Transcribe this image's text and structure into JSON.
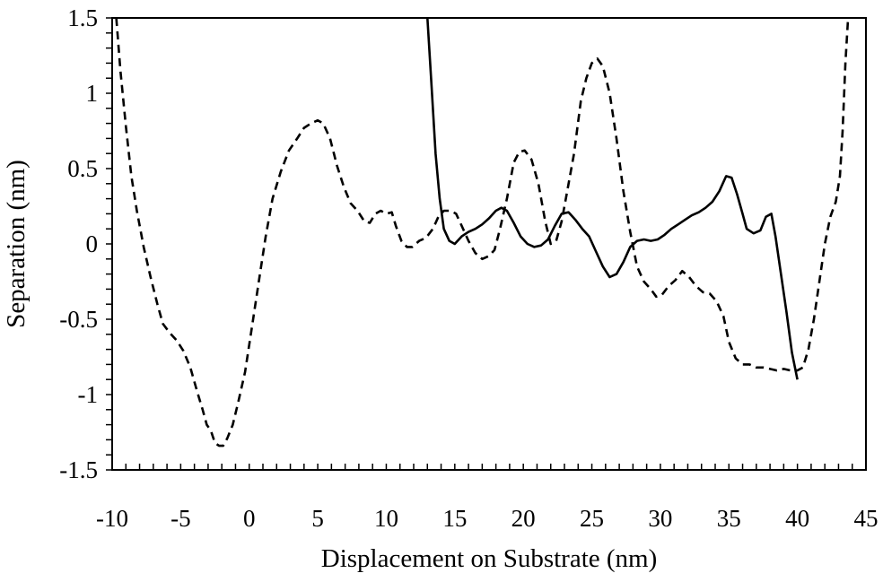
{
  "chart_data": {
    "type": "line",
    "title": "",
    "xlabel": "Displacement on Substrate (nm)",
    "ylabel": "Separation (nm)",
    "xlim": [
      -10,
      45
    ],
    "ylim": [
      -1.5,
      1.5
    ],
    "x_ticks": [
      -10,
      -5,
      0,
      5,
      10,
      15,
      20,
      25,
      30,
      35,
      40,
      45
    ],
    "x_tick_labels": [
      "-10",
      "-5",
      "0",
      "5",
      "10",
      "15",
      "20",
      "25",
      "30",
      "35",
      "40",
      "45"
    ],
    "y_ticks": [
      1.5,
      1,
      0.5,
      0,
      -0.5,
      -1,
      -1.5
    ],
    "y_tick_labels": [
      "1.5",
      "1",
      "0.5",
      "0",
      "-0.5",
      "-1",
      "-1.5"
    ],
    "x_minor_step": 1,
    "y_minor_step": 0.1,
    "grid": false,
    "legend": "none",
    "series": [
      {
        "style": "dashed",
        "color": "#000000",
        "points": [
          [
            -9.7,
            1.5
          ],
          [
            -9.4,
            1.15
          ],
          [
            -9.0,
            0.78
          ],
          [
            -8.6,
            0.45
          ],
          [
            -8.2,
            0.22
          ],
          [
            -7.7,
            -0.02
          ],
          [
            -7.2,
            -0.22
          ],
          [
            -6.7,
            -0.4
          ],
          [
            -6.3,
            -0.53
          ],
          [
            -5.8,
            -0.59
          ],
          [
            -5.3,
            -0.64
          ],
          [
            -4.8,
            -0.71
          ],
          [
            -4.3,
            -0.82
          ],
          [
            -3.8,
            -0.98
          ],
          [
            -3.4,
            -1.1
          ],
          [
            -3.1,
            -1.2
          ],
          [
            -2.8,
            -1.24
          ],
          [
            -2.5,
            -1.32
          ],
          [
            -2.2,
            -1.34
          ],
          [
            -1.9,
            -1.34
          ],
          [
            -1.6,
            -1.29
          ],
          [
            -1.2,
            -1.2
          ],
          [
            -0.8,
            -1.05
          ],
          [
            -0.3,
            -0.85
          ],
          [
            0.2,
            -0.55
          ],
          [
            0.7,
            -0.25
          ],
          [
            1.2,
            0.05
          ],
          [
            1.7,
            0.3
          ],
          [
            2.3,
            0.48
          ],
          [
            2.9,
            0.62
          ],
          [
            3.5,
            0.7
          ],
          [
            4.0,
            0.77
          ],
          [
            4.5,
            0.8
          ],
          [
            5.0,
            0.82
          ],
          [
            5.4,
            0.8
          ],
          [
            5.9,
            0.7
          ],
          [
            6.4,
            0.52
          ],
          [
            6.9,
            0.38
          ],
          [
            7.4,
            0.27
          ],
          [
            7.9,
            0.22
          ],
          [
            8.4,
            0.15
          ],
          [
            8.8,
            0.14
          ],
          [
            9.2,
            0.2
          ],
          [
            9.6,
            0.22
          ],
          [
            10.0,
            0.2
          ],
          [
            10.4,
            0.21
          ],
          [
            10.7,
            0.12
          ],
          [
            11.1,
            0.02
          ],
          [
            11.5,
            -0.02
          ],
          [
            11.9,
            -0.02
          ],
          [
            12.4,
            0.02
          ],
          [
            12.9,
            0.04
          ],
          [
            13.4,
            0.1
          ],
          [
            13.8,
            0.18
          ],
          [
            14.2,
            0.22
          ],
          [
            14.7,
            0.22
          ],
          [
            15.1,
            0.2
          ],
          [
            15.5,
            0.12
          ],
          [
            16.0,
            0.02
          ],
          [
            16.5,
            -0.06
          ],
          [
            17.0,
            -0.1
          ],
          [
            17.5,
            -0.08
          ],
          [
            17.9,
            -0.04
          ],
          [
            18.3,
            0.1
          ],
          [
            18.8,
            0.3
          ],
          [
            19.3,
            0.54
          ],
          [
            19.7,
            0.61
          ],
          [
            20.1,
            0.62
          ],
          [
            20.6,
            0.56
          ],
          [
            21.1,
            0.4
          ],
          [
            21.6,
            0.15
          ],
          [
            22.0,
            0.0
          ],
          [
            22.4,
            0.02
          ],
          [
            22.8,
            0.15
          ],
          [
            23.2,
            0.35
          ],
          [
            23.7,
            0.6
          ],
          [
            24.2,
            0.95
          ],
          [
            24.6,
            1.1
          ],
          [
            25.0,
            1.2
          ],
          [
            25.4,
            1.23
          ],
          [
            25.8,
            1.18
          ],
          [
            26.3,
            1.0
          ],
          [
            26.8,
            0.7
          ],
          [
            27.3,
            0.35
          ],
          [
            27.8,
            0.08
          ],
          [
            28.3,
            -0.15
          ],
          [
            28.8,
            -0.25
          ],
          [
            29.3,
            -0.3
          ],
          [
            29.7,
            -0.35
          ],
          [
            30.1,
            -0.34
          ],
          [
            30.6,
            -0.28
          ],
          [
            31.1,
            -0.24
          ],
          [
            31.6,
            -0.18
          ],
          [
            32.1,
            -0.22
          ],
          [
            32.6,
            -0.28
          ],
          [
            33.1,
            -0.32
          ],
          [
            33.6,
            -0.33
          ],
          [
            34.1,
            -0.38
          ],
          [
            34.6,
            -0.48
          ],
          [
            35.0,
            -0.65
          ],
          [
            35.5,
            -0.76
          ],
          [
            36.0,
            -0.8
          ],
          [
            36.5,
            -0.8
          ],
          [
            37.0,
            -0.82
          ],
          [
            37.5,
            -0.82
          ],
          [
            38.0,
            -0.83
          ],
          [
            38.5,
            -0.84
          ],
          [
            39.0,
            -0.83
          ],
          [
            39.5,
            -0.84
          ],
          [
            40.0,
            -0.84
          ],
          [
            40.4,
            -0.82
          ],
          [
            40.8,
            -0.7
          ],
          [
            41.2,
            -0.5
          ],
          [
            41.6,
            -0.25
          ],
          [
            42.0,
            0.0
          ],
          [
            42.4,
            0.18
          ],
          [
            42.8,
            0.28
          ],
          [
            43.1,
            0.45
          ],
          [
            43.3,
            0.75
          ],
          [
            43.5,
            1.2
          ],
          [
            43.7,
            1.5
          ]
        ]
      },
      {
        "style": "solid",
        "color": "#000000",
        "points": [
          [
            13.0,
            1.5
          ],
          [
            13.3,
            1.05
          ],
          [
            13.6,
            0.6
          ],
          [
            13.9,
            0.3
          ],
          [
            14.2,
            0.1
          ],
          [
            14.6,
            0.02
          ],
          [
            15.0,
            0.0
          ],
          [
            15.5,
            0.05
          ],
          [
            16.0,
            0.08
          ],
          [
            16.5,
            0.1
          ],
          [
            17.0,
            0.13
          ],
          [
            17.5,
            0.17
          ],
          [
            18.0,
            0.22
          ],
          [
            18.4,
            0.24
          ],
          [
            18.8,
            0.22
          ],
          [
            19.3,
            0.14
          ],
          [
            19.8,
            0.05
          ],
          [
            20.3,
            0.0
          ],
          [
            20.8,
            -0.02
          ],
          [
            21.3,
            -0.01
          ],
          [
            21.8,
            0.03
          ],
          [
            22.3,
            0.12
          ],
          [
            22.8,
            0.2
          ],
          [
            23.3,
            0.21
          ],
          [
            23.8,
            0.16
          ],
          [
            24.3,
            0.1
          ],
          [
            24.8,
            0.05
          ],
          [
            25.3,
            -0.05
          ],
          [
            25.8,
            -0.15
          ],
          [
            26.3,
            -0.22
          ],
          [
            26.8,
            -0.2
          ],
          [
            27.3,
            -0.12
          ],
          [
            27.8,
            -0.02
          ],
          [
            28.3,
            0.02
          ],
          [
            28.8,
            0.03
          ],
          [
            29.3,
            0.02
          ],
          [
            29.8,
            0.03
          ],
          [
            30.3,
            0.06
          ],
          [
            30.8,
            0.1
          ],
          [
            31.3,
            0.13
          ],
          [
            31.8,
            0.16
          ],
          [
            32.3,
            0.19
          ],
          [
            32.8,
            0.21
          ],
          [
            33.3,
            0.24
          ],
          [
            33.8,
            0.28
          ],
          [
            34.3,
            0.35
          ],
          [
            34.8,
            0.45
          ],
          [
            35.2,
            0.44
          ],
          [
            35.6,
            0.33
          ],
          [
            36.0,
            0.2
          ],
          [
            36.3,
            0.1
          ],
          [
            36.8,
            0.07
          ],
          [
            37.3,
            0.09
          ],
          [
            37.7,
            0.18
          ],
          [
            38.1,
            0.2
          ],
          [
            38.4,
            0.05
          ],
          [
            38.8,
            -0.2
          ],
          [
            39.2,
            -0.45
          ],
          [
            39.6,
            -0.72
          ],
          [
            40.0,
            -0.9
          ]
        ]
      }
    ]
  }
}
